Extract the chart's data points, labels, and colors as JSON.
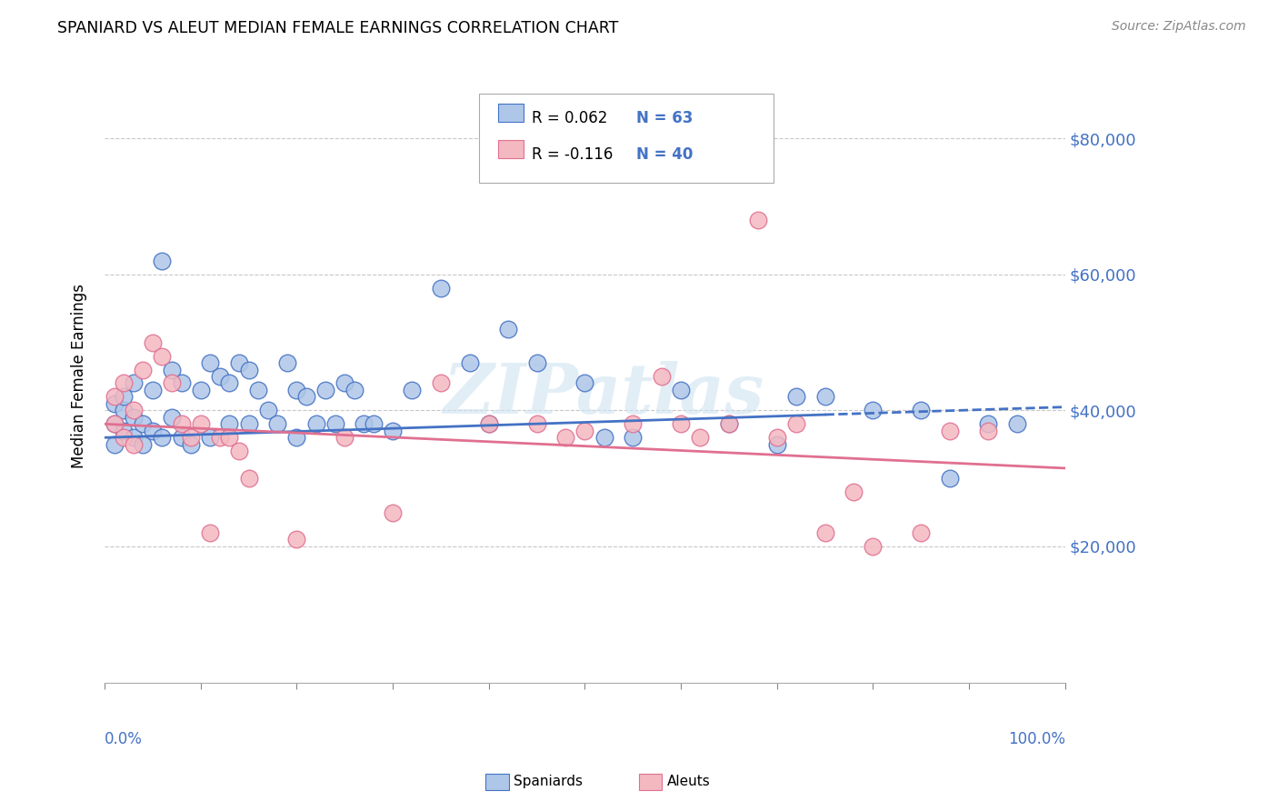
{
  "title": "SPANIARD VS ALEUT MEDIAN FEMALE EARNINGS CORRELATION CHART",
  "source": "Source: ZipAtlas.com",
  "ylabel": "Median Female Earnings",
  "ytick_values": [
    20000,
    40000,
    60000,
    80000
  ],
  "ytick_labels": [
    "$20,000",
    "$40,000",
    "$60,000",
    "$80,000"
  ],
  "ylim": [
    0,
    90000
  ],
  "xlim": [
    0,
    100
  ],
  "watermark": "ZIPatlas",
  "spaniard_color": "#aec6e8",
  "aleut_color": "#f4b8c1",
  "line_blue": "#4472c4",
  "line_pink": "#e07090",
  "background": "#ffffff",
  "grid_color": "#c8c8c8",
  "blue_line_x0": 0,
  "blue_line_y0": 36000,
  "blue_line_x1": 100,
  "blue_line_y1": 40500,
  "blue_dash_start": 75,
  "pink_line_x0": 0,
  "pink_line_y0": 38000,
  "pink_line_x1": 100,
  "pink_line_y1": 31500,
  "spaniard_x": [
    1,
    1,
    1,
    2,
    2,
    2,
    3,
    3,
    3,
    4,
    4,
    5,
    5,
    6,
    6,
    7,
    7,
    8,
    8,
    9,
    10,
    11,
    11,
    12,
    13,
    13,
    14,
    15,
    15,
    16,
    17,
    18,
    19,
    20,
    20,
    21,
    22,
    23,
    24,
    25,
    26,
    27,
    28,
    30,
    32,
    35,
    38,
    40,
    42,
    45,
    50,
    52,
    55,
    60,
    65,
    70,
    72,
    75,
    80,
    85,
    88,
    92,
    95
  ],
  "spaniard_y": [
    38000,
    41000,
    35000,
    40000,
    37000,
    42000,
    36000,
    44000,
    39000,
    38000,
    35000,
    43000,
    37000,
    62000,
    36000,
    46000,
    39000,
    44000,
    36000,
    35000,
    43000,
    47000,
    36000,
    45000,
    44000,
    38000,
    47000,
    46000,
    38000,
    43000,
    40000,
    38000,
    47000,
    43000,
    36000,
    42000,
    38000,
    43000,
    38000,
    44000,
    43000,
    38000,
    38000,
    37000,
    43000,
    58000,
    47000,
    38000,
    52000,
    47000,
    44000,
    36000,
    36000,
    43000,
    38000,
    35000,
    42000,
    42000,
    40000,
    40000,
    30000,
    38000,
    38000
  ],
  "aleut_x": [
    1,
    1,
    2,
    2,
    3,
    3,
    4,
    5,
    6,
    7,
    8,
    9,
    10,
    11,
    12,
    13,
    14,
    15,
    20,
    25,
    30,
    35,
    40,
    45,
    48,
    50,
    55,
    58,
    60,
    62,
    65,
    68,
    70,
    72,
    75,
    78,
    80,
    85,
    88,
    92
  ],
  "aleut_y": [
    38000,
    42000,
    44000,
    36000,
    40000,
    35000,
    46000,
    50000,
    48000,
    44000,
    38000,
    36000,
    38000,
    22000,
    36000,
    36000,
    34000,
    30000,
    21000,
    36000,
    25000,
    44000,
    38000,
    38000,
    36000,
    37000,
    38000,
    45000,
    38000,
    36000,
    38000,
    68000,
    36000,
    38000,
    22000,
    28000,
    20000,
    22000,
    37000,
    37000
  ]
}
